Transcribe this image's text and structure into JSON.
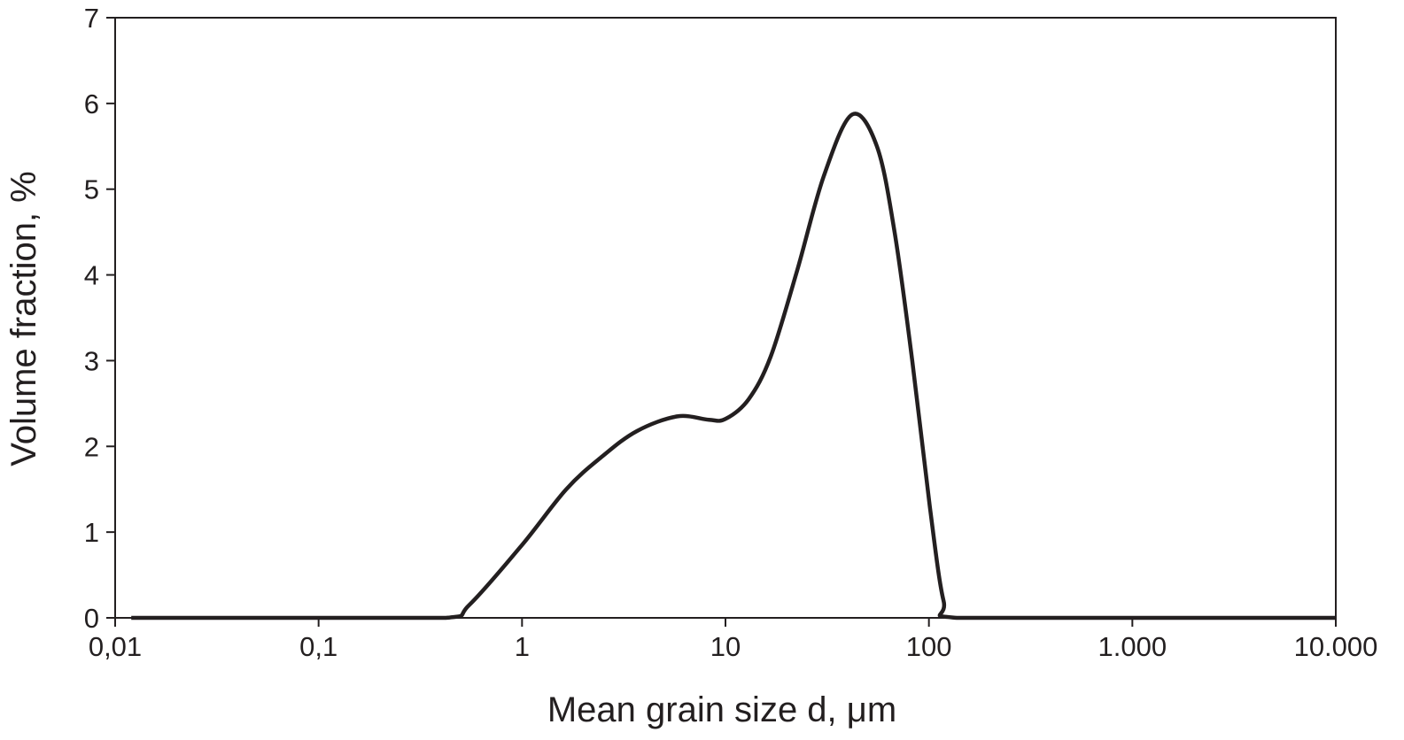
{
  "chart_data": {
    "type": "line",
    "title": "",
    "xlabel": "Mean grain size d, μm",
    "ylabel": "Volume fraction, %",
    "xscale": "log",
    "xlim": [
      0.01,
      10000
    ],
    "ylim": [
      0,
      7
    ],
    "grid": false,
    "legend": "none",
    "line_color": "#231f20",
    "x_ticks": [
      {
        "value": 0.01,
        "label": "0,01"
      },
      {
        "value": 0.1,
        "label": "0,1"
      },
      {
        "value": 1,
        "label": "1"
      },
      {
        "value": 10,
        "label": "10"
      },
      {
        "value": 100,
        "label": "100"
      },
      {
        "value": 1000,
        "label": "1.000"
      },
      {
        "value": 10000,
        "label": "10.000"
      }
    ],
    "y_ticks": [
      {
        "value": 0,
        "label": "0"
      },
      {
        "value": 1,
        "label": "1"
      },
      {
        "value": 2,
        "label": "2"
      },
      {
        "value": 3,
        "label": "3"
      },
      {
        "value": 4,
        "label": "4"
      },
      {
        "value": 5,
        "label": "5"
      },
      {
        "value": 6,
        "label": "6"
      },
      {
        "value": 7,
        "label": "7"
      }
    ],
    "series": [
      {
        "x": [
          0.012,
          0.1,
          0.42,
          0.55,
          1,
          1.65,
          2.47,
          3.68,
          5.8,
          8.3,
          10,
          13,
          16.7,
          22.5,
          30.4,
          41.9,
          55.5,
          67.8,
          82.8,
          101,
          118,
          137,
          1000,
          10000
        ],
        "y": [
          0,
          0,
          0,
          0.15,
          0.85,
          1.5,
          1.88,
          2.18,
          2.35,
          2.31,
          2.32,
          2.55,
          3.05,
          4.05,
          5.15,
          5.87,
          5.5,
          4.5,
          3.0,
          1.3,
          0.2,
          0,
          0,
          0
        ]
      }
    ]
  }
}
